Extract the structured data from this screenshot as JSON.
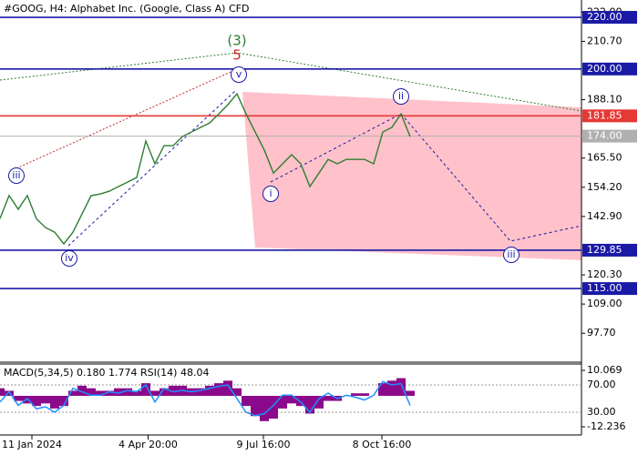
{
  "chart_data": [
    {
      "type": "line",
      "title": "#GOOG, H4:  Alphabet Inc. (Google, Class A) CFD",
      "xlim": [
        0,
        63.8
      ],
      "xticks": [
        {
          "value": 3.5,
          "label": "11 Jan 2024"
        },
        {
          "value": 16.25,
          "label": "4 Apr 20:00"
        },
        {
          "value": 28.9,
          "label": "9 Jul 16:00"
        },
        {
          "value": 41.9,
          "label": "8 Oct 16:00"
        }
      ],
      "ylim": [
        86.5,
        226.7
      ],
      "yticks": [
        {
          "value": 222,
          "label": "222.00"
        },
        {
          "value": 210.7,
          "label": "210.70"
        },
        {
          "value": 188.1,
          "label": "188.10"
        },
        {
          "value": 165.5,
          "label": "165.50"
        },
        {
          "value": 154.2,
          "label": "154.20"
        },
        {
          "value": 142.9,
          "label": "142.90"
        },
        {
          "value": 120.3,
          "label": "120.30"
        },
        {
          "value": 109,
          "label": "109.00"
        },
        {
          "value": 97.7,
          "label": "97.70"
        }
      ],
      "series": [
        {
          "name": "GOOG",
          "color": "#2e7d32",
          "values": [
            142.1,
            151,
            145.7,
            151,
            142,
            138.6,
            136.8,
            132.3,
            136.8,
            143.9,
            151,
            151.6,
            152.7,
            154.5,
            156.2,
            158,
            172.1,
            163.3,
            170.3,
            170.3,
            173.8,
            175.6,
            177.4,
            179.1,
            182.6,
            186.2,
            190.4,
            182.6,
            175.6,
            168.6,
            159.7,
            163.3,
            166.8,
            163.3,
            154.5,
            159.7,
            165,
            163.3,
            165,
            165,
            165,
            163.3,
            175.6,
            177.4,
            182.6,
            173.8
          ]
        }
      ],
      "levels": [
        {
          "value": 220,
          "label": "220.00",
          "color": "#1a1aa6"
        },
        {
          "value": 200,
          "label": "200.00",
          "color": "#1a1aa6"
        },
        {
          "value": 181.85,
          "label": "181.85",
          "color": "#e53935"
        },
        {
          "value": 174,
          "label": "174.00",
          "color": "#b0b0b0"
        },
        {
          "value": 129.85,
          "label": "129.85",
          "color": "#1a1aa6"
        },
        {
          "value": 115,
          "label": "115.00",
          "color": "#1a1aa6"
        }
      ],
      "annotations": [
        {
          "text": "(3)",
          "color": "#2e7d32",
          "circled": false
        },
        {
          "text": "5",
          "color": "#c62828",
          "circled": false
        },
        {
          "text": "v",
          "color": "#1a1aa6",
          "circled": true
        },
        {
          "text": "iii",
          "color": "#1a1aa6",
          "circled": true
        },
        {
          "text": "iv",
          "color": "#1a1aa6",
          "circled": true
        },
        {
          "text": "i",
          "color": "#1a1aa6",
          "circled": true
        },
        {
          "text": "ii",
          "color": "#1a1aa6",
          "circled": true
        },
        {
          "text": "iii",
          "color": "#1a1aa6",
          "circled": true
        }
      ]
    },
    {
      "type": "bar",
      "title": "MACD(5,34,5) 0.180 1.774 RSI(14) 48.04",
      "xlim": [
        0,
        63.8
      ],
      "ylim": [
        -15.47,
        12.59
      ],
      "yticks": [
        10.069,
        -12.236
      ],
      "y2lim": [
        -3.3,
        100.7
      ],
      "y2ticks": [
        {
          "value": 70,
          "label": "70.00"
        },
        {
          "value": 30,
          "label": "30.00"
        }
      ],
      "series": [
        {
          "name": "MACD",
          "color": "#8b0a8b",
          "values": [
            3,
            2,
            -2,
            -3,
            -4,
            -3,
            -5,
            -4,
            2,
            4,
            3,
            2,
            2,
            3,
            3,
            2,
            5,
            2,
            3,
            4,
            4,
            3,
            3,
            4,
            5,
            6,
            3,
            -4,
            -8,
            -10,
            -9,
            -5,
            -3,
            -4,
            -7,
            -5,
            -2,
            -2,
            0,
            1,
            1,
            0,
            5,
            6,
            7,
            2
          ]
        },
        {
          "name": "RSI",
          "color": "#1e90ff",
          "axis": "y2",
          "values": [
            45,
            60,
            40,
            50,
            35,
            38,
            30,
            40,
            65,
            60,
            55,
            55,
            60,
            58,
            62,
            60,
            70,
            45,
            65,
            60,
            62,
            60,
            62,
            65,
            68,
            70,
            50,
            30,
            25,
            28,
            40,
            55,
            55,
            45,
            30,
            50,
            58,
            50,
            55,
            52,
            48,
            55,
            75,
            70,
            72,
            40
          ]
        }
      ]
    }
  ]
}
